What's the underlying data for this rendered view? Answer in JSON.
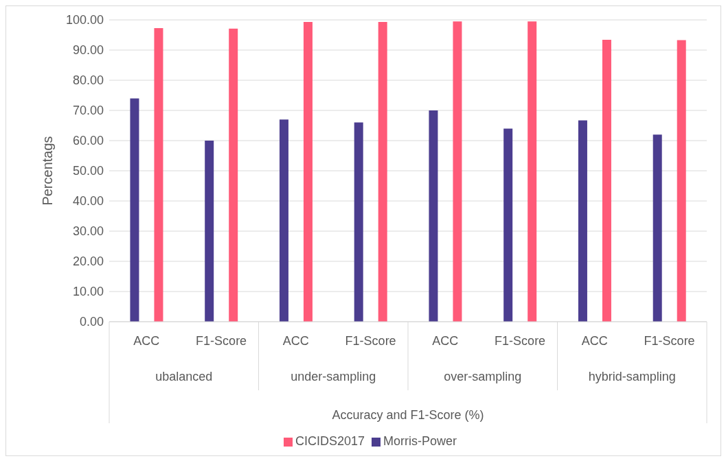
{
  "chart_data": {
    "type": "bar",
    "ylabel": "Percentags",
    "xlabel": "Accuracy and F1-Score (%)",
    "categories": [
      "ACC",
      "F1-Score",
      "ACC",
      "F1-Score",
      "ACC",
      "F1-Score",
      "ACC",
      "F1-Score"
    ],
    "annotations": [
      "ubalanced",
      "under-sampling",
      "over-sampling",
      "hybrid-sampling"
    ],
    "series": [
      {
        "name": "Morris-Power",
        "color": "#4b3d8f",
        "values": [
          74,
          60,
          67,
          66,
          70,
          64,
          66.7,
          62
        ]
      },
      {
        "name": "CICIDS2017",
        "color": "#ff5a78",
        "values": [
          97.3,
          97.1,
          99.3,
          99.3,
          99.5,
          99.5,
          93.4,
          93.3
        ]
      }
    ],
    "ylim": [
      0,
      100
    ],
    "yticks": [
      {
        "value": 0,
        "label": "0.00"
      },
      {
        "value": 10,
        "label": "10.00"
      },
      {
        "value": 20,
        "label": "20.00"
      },
      {
        "value": 30,
        "label": "30.00"
      },
      {
        "value": 40,
        "label": "40.00"
      },
      {
        "value": 50,
        "label": "50.00"
      },
      {
        "value": 60,
        "label": "60.00"
      },
      {
        "value": 70,
        "label": "70.00"
      },
      {
        "value": 80,
        "label": "80.00"
      },
      {
        "value": 90,
        "label": "90.00"
      },
      {
        "value": 100,
        "label": "100.00"
      }
    ],
    "grid": "y",
    "legend": "bottom"
  }
}
